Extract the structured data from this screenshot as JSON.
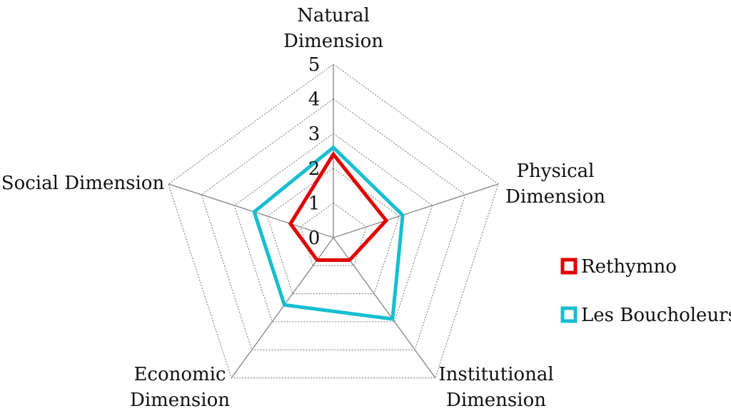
{
  "chart_data": {
    "type": "radar",
    "axes": [
      {
        "label_lines": [
          "Natural",
          "Dimension"
        ]
      },
      {
        "label_lines": [
          "Physical",
          "Dimension"
        ]
      },
      {
        "label_lines": [
          "Institutional",
          "Dimension"
        ]
      },
      {
        "label_lines": [
          "Economic",
          "Dimension"
        ]
      },
      {
        "label_lines": [
          "Social Dimension"
        ]
      }
    ],
    "categories": [
      "Natural Dimension",
      "Physical Dimension",
      "Institutional Dimension",
      "Economic Dimension",
      "Social Dimension"
    ],
    "r_range": [
      0,
      5
    ],
    "ticks": [
      "0",
      "1",
      "2",
      "3",
      "4",
      "5"
    ],
    "grid": true,
    "legend_position": "right",
    "series": [
      {
        "name": "Rethymno",
        "color": "#e00000",
        "values": [
          2.4,
          1.6,
          0.8,
          0.8,
          1.3
        ]
      },
      {
        "name": "Les Boucholeurs",
        "color": "#17becf",
        "values": [
          2.6,
          2.1,
          2.9,
          2.4,
          2.4
        ]
      }
    ]
  }
}
